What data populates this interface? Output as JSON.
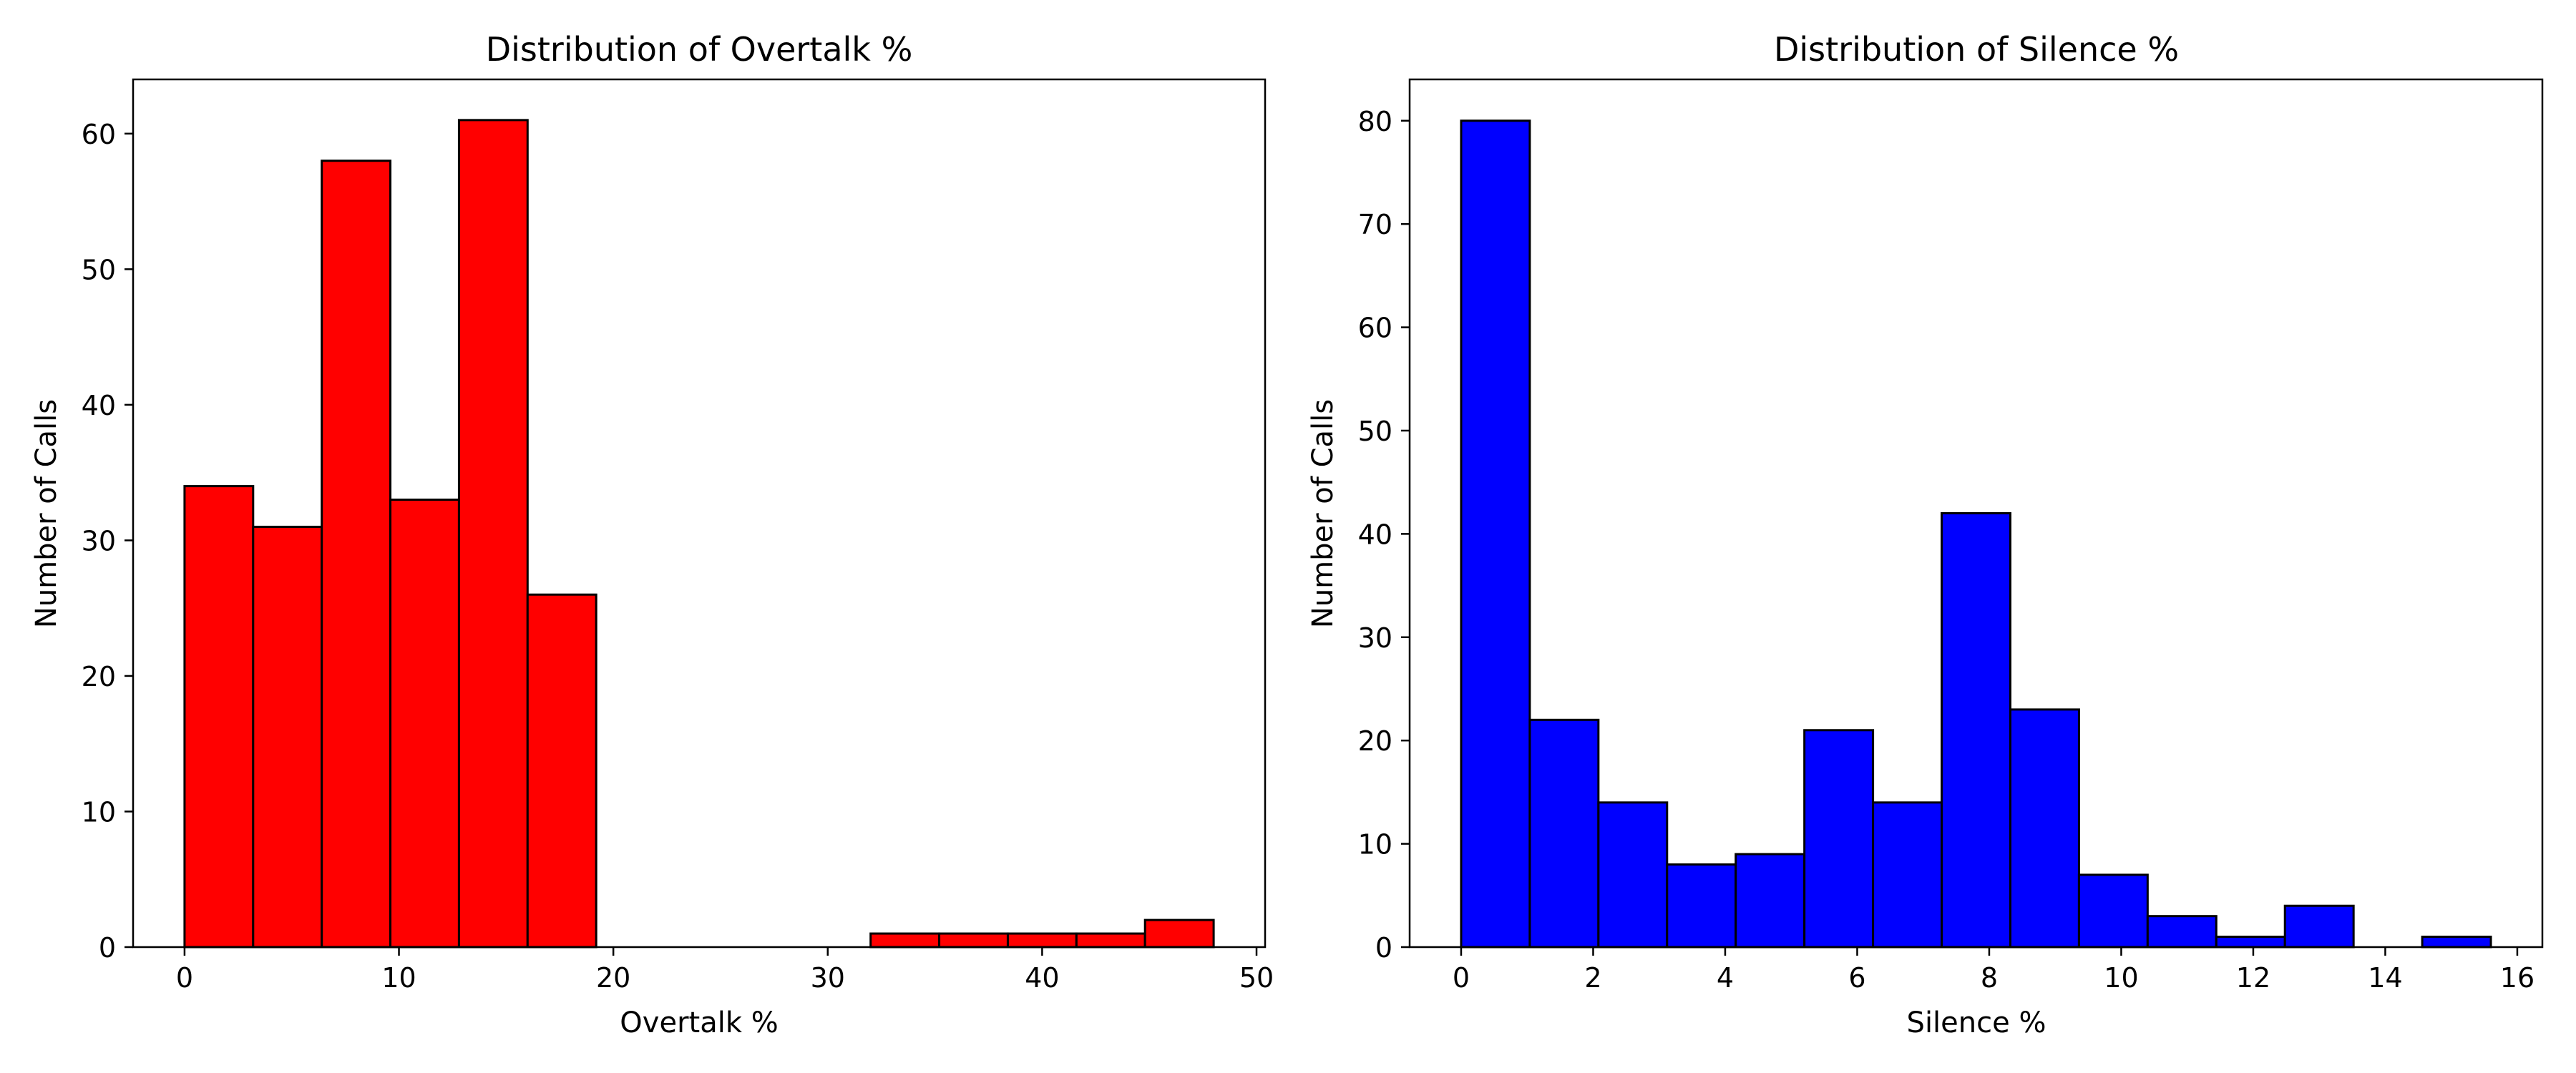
{
  "chart_data": [
    {
      "type": "bar",
      "title": "Distribution of Overtalk %",
      "xlabel": "Overtalk %",
      "ylabel": "Number of Calls",
      "color": "#ff0000",
      "edgecolor": "#000000",
      "bin_start": 0,
      "bin_width": 3.2,
      "values": [
        34,
        31,
        58,
        33,
        61,
        26,
        0,
        0,
        0,
        0,
        1,
        1,
        1,
        1,
        2
      ],
      "xlim": [
        -2.4,
        50.4
      ],
      "ylim": [
        0,
        64
      ],
      "xticks": [
        0,
        10,
        20,
        30,
        40,
        50
      ],
      "yticks": [
        0,
        10,
        20,
        30,
        40,
        50,
        60
      ],
      "grid": false
    },
    {
      "type": "bar",
      "title": "Distribution of Silence %",
      "xlabel": "Silence %",
      "ylabel": "Number of Calls",
      "color": "#0000ff",
      "edgecolor": "#000000",
      "bin_start": 0,
      "bin_width": 1.04,
      "values": [
        80,
        22,
        14,
        8,
        9,
        21,
        14,
        42,
        23,
        7,
        3,
        1,
        4,
        0,
        1
      ],
      "xlim": [
        -0.78,
        16.38
      ],
      "ylim": [
        0,
        84
      ],
      "xticks": [
        0,
        2,
        4,
        6,
        8,
        10,
        12,
        14,
        16
      ],
      "yticks": [
        0,
        10,
        20,
        30,
        40,
        50,
        60,
        70,
        80
      ],
      "grid": false
    }
  ]
}
